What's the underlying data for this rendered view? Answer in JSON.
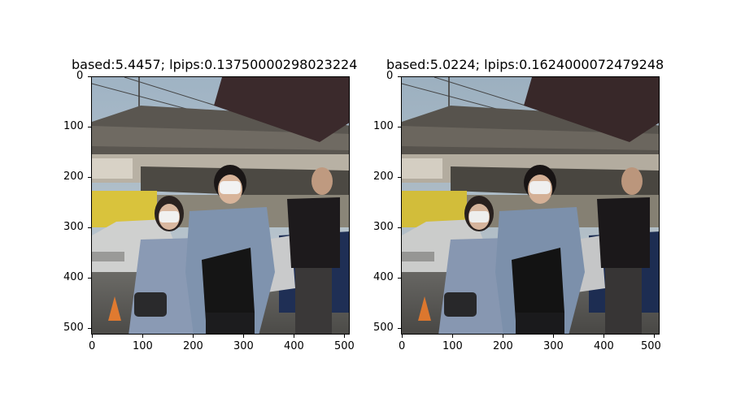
{
  "figure": {
    "panels": [
      {
        "title": "based:5.4457; lpips:0.13750000298023224",
        "y_ticks": [
          "0",
          "100",
          "200",
          "300",
          "400",
          "500"
        ],
        "x_ticks": [
          "0",
          "100",
          "200",
          "300",
          "400",
          "500"
        ]
      },
      {
        "title": "based:5.0224; lpips:0.1624000072479248",
        "y_ticks": [
          "0",
          "100",
          "200",
          "300",
          "400",
          "500"
        ],
        "x_ticks": [
          "0",
          "100",
          "200",
          "300",
          "400",
          "500"
        ]
      }
    ]
  }
}
